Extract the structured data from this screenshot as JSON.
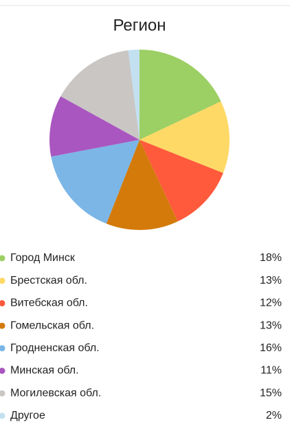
{
  "chart_data": {
    "type": "pie",
    "title": "Регион",
    "categories": [
      "Город Минск",
      "Брестская обл.",
      "Витебская обл.",
      "Гомельская обл.",
      "Гродненская обл.",
      "Минская обл.",
      "Могилевская обл.",
      "Другое"
    ],
    "values": [
      18,
      13,
      12,
      13,
      16,
      11,
      15,
      2
    ],
    "value_labels": [
      "18%",
      "13%",
      "12%",
      "13%",
      "16%",
      "11%",
      "15%",
      "2%"
    ],
    "colors": [
      "#9ccf64",
      "#ffd966",
      "#ff5a3c",
      "#d37a0b",
      "#7bb6e6",
      "#a956c0",
      "#c9c6c3",
      "#c3e0f1"
    ]
  }
}
